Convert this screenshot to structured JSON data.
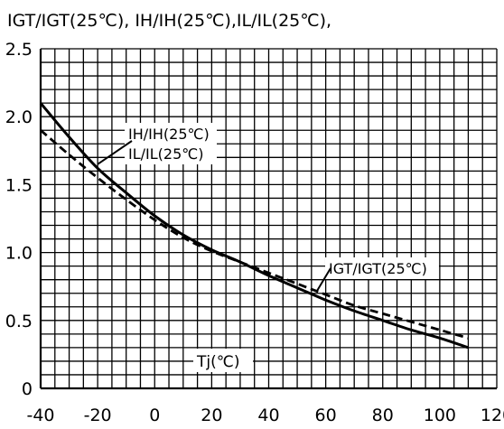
{
  "chart_data": {
    "type": "line",
    "title": "IGT/IGT(25℃), IH/IH(25℃),IL/IL(25℃),",
    "xlabel": "Tj(℃)",
    "ylabel": "",
    "xlim": [
      -40,
      120
    ],
    "ylim": [
      0,
      2.5
    ],
    "grid": true,
    "x_ticks": [
      -40,
      -20,
      0,
      20,
      40,
      60,
      80,
      100,
      120
    ],
    "x_tick_labels": [
      "-40",
      "-20",
      "0",
      "20",
      "40",
      "60",
      "80",
      "100",
      "120"
    ],
    "y_ticks": [
      0,
      0.5,
      1.0,
      1.5,
      2.0,
      2.5
    ],
    "y_tick_labels": [
      "0",
      "0.5",
      "1.0",
      "1.5",
      "2.0",
      "2.5"
    ],
    "series": [
      {
        "name": "IH/IH(25℃) IL/IL(25℃)",
        "style": "solid",
        "x": [
          -40,
          -30,
          -20,
          -10,
          0,
          10,
          20,
          30,
          40,
          50,
          60,
          70,
          80,
          90,
          100,
          110
        ],
        "y": [
          2.1,
          1.85,
          1.62,
          1.44,
          1.27,
          1.13,
          1.02,
          0.93,
          0.83,
          0.74,
          0.65,
          0.57,
          0.5,
          0.43,
          0.37,
          0.3
        ]
      },
      {
        "name": "IGT/IGT(25℃)",
        "style": "dashed",
        "x": [
          -40,
          -30,
          -20,
          -10,
          0,
          10,
          20,
          30,
          40,
          50,
          60,
          70,
          80,
          90,
          100,
          110
        ],
        "y": [
          1.9,
          1.72,
          1.55,
          1.39,
          1.24,
          1.11,
          1.01,
          0.93,
          0.85,
          0.77,
          0.69,
          0.61,
          0.55,
          0.49,
          0.43,
          0.37
        ]
      }
    ],
    "annotations": [
      {
        "lines": [
          "IH/IH(25℃)",
          "IL/IL(25℃)"
        ],
        "points_to_series": "IH/IH(25℃) IL/IL(25℃)",
        "target": [
          -20,
          1.65
        ]
      },
      {
        "lines": [
          "IGT/IGT(25℃)"
        ],
        "points_to_series": "IGT/IGT(25℃)",
        "target": [
          57,
          0.72
        ]
      }
    ],
    "colors": {
      "line": "#000000",
      "grid": "#000000",
      "background": "#ffffff"
    }
  }
}
